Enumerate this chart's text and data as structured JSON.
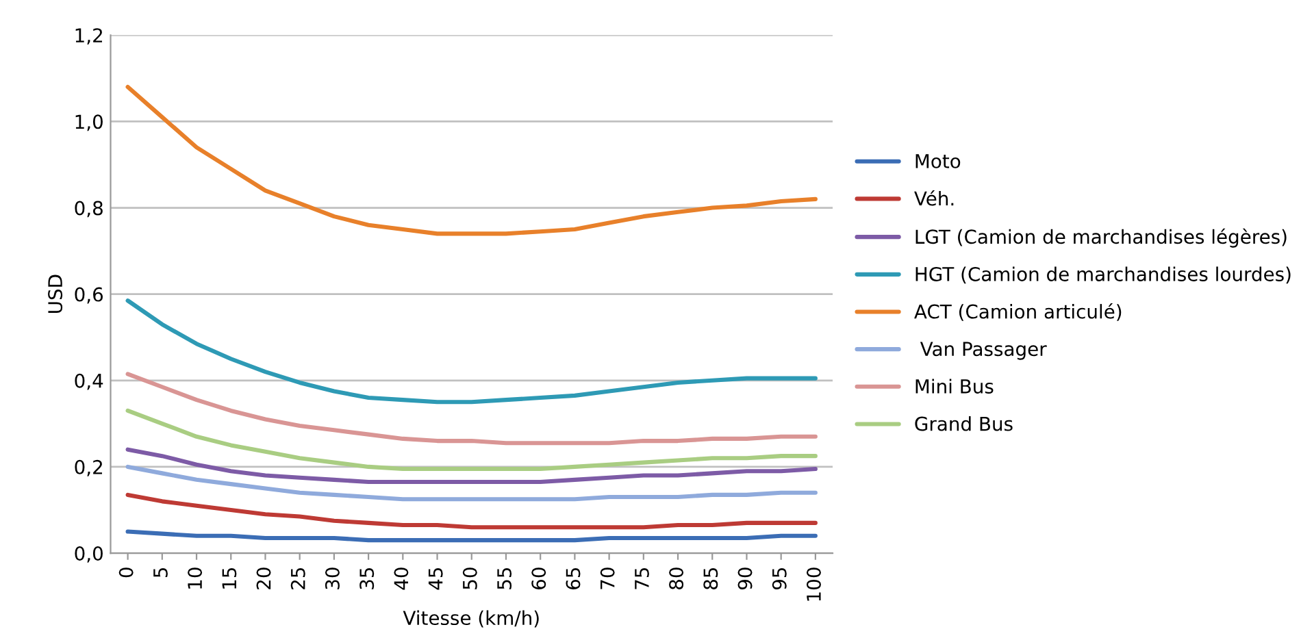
{
  "chart_data": {
    "type": "line",
    "xlabel": "Vitesse (km/h)",
    "ylabel": "USD",
    "categories": [
      "0",
      "5",
      "10",
      "15",
      "20",
      "25",
      "30",
      "35",
      "40",
      "45",
      "50",
      "55",
      "60",
      "65",
      "70",
      "75",
      "80",
      "85",
      "90",
      "95",
      "100"
    ],
    "ylim": [
      0,
      1.2
    ],
    "yticks": [
      {
        "value": 0,
        "label": "0,0"
      },
      {
        "value": 0.2,
        "label": "0,2"
      },
      {
        "value": 0.4,
        "label": "0,4"
      },
      {
        "value": 0.6,
        "label": "0,6"
      },
      {
        "value": 0.8,
        "label": "0,8"
      },
      {
        "value": 1.0,
        "label": "1,0"
      },
      {
        "value": 1.2,
        "label": "1,2"
      }
    ],
    "grid": "y",
    "legend": "right",
    "marker": "none",
    "line_style": "solid",
    "series": [
      {
        "name": "Moto",
        "color": "#3b6db5",
        "values": [
          0.05,
          0.045,
          0.04,
          0.04,
          0.035,
          0.035,
          0.035,
          0.03,
          0.03,
          0.03,
          0.03,
          0.03,
          0.03,
          0.03,
          0.035,
          0.035,
          0.035,
          0.035,
          0.035,
          0.04,
          0.04
        ]
      },
      {
        "name": "Véh.",
        "color": "#be3a34",
        "values": [
          0.135,
          0.12,
          0.11,
          0.1,
          0.09,
          0.085,
          0.075,
          0.07,
          0.065,
          0.065,
          0.06,
          0.06,
          0.06,
          0.06,
          0.06,
          0.06,
          0.065,
          0.065,
          0.07,
          0.07,
          0.07
        ]
      },
      {
        "name": "LGT (Camion de marchandises légères)",
        "color": "#7d5ba6",
        "values": [
          0.24,
          0.225,
          0.205,
          0.19,
          0.18,
          0.175,
          0.17,
          0.165,
          0.165,
          0.165,
          0.165,
          0.165,
          0.165,
          0.17,
          0.175,
          0.18,
          0.18,
          0.185,
          0.19,
          0.19,
          0.195
        ]
      },
      {
        "name": "HGT (Camion de marchandises lourdes)",
        "color": "#2e9ab5",
        "values": [
          0.585,
          0.53,
          0.485,
          0.45,
          0.42,
          0.395,
          0.375,
          0.36,
          0.355,
          0.35,
          0.35,
          0.355,
          0.36,
          0.365,
          0.375,
          0.385,
          0.395,
          0.4,
          0.405,
          0.405,
          0.405
        ]
      },
      {
        "name": "ACT (Camion articulé)",
        "color": "#e8802a",
        "values": [
          1.08,
          1.01,
          0.94,
          0.89,
          0.84,
          0.81,
          0.78,
          0.76,
          0.75,
          0.74,
          0.74,
          0.74,
          0.745,
          0.75,
          0.765,
          0.78,
          0.79,
          0.8,
          0.805,
          0.815,
          0.82
        ]
      },
      {
        "name": " Van Passager",
        "color": "#8faadc",
        "values": [
          0.2,
          0.185,
          0.17,
          0.16,
          0.15,
          0.14,
          0.135,
          0.13,
          0.125,
          0.125,
          0.125,
          0.125,
          0.125,
          0.125,
          0.13,
          0.13,
          0.13,
          0.135,
          0.135,
          0.14,
          0.14
        ]
      },
      {
        "name": "Mini Bus",
        "color": "#d99594",
        "values": [
          0.415,
          0.385,
          0.355,
          0.33,
          0.31,
          0.295,
          0.285,
          0.275,
          0.265,
          0.26,
          0.26,
          0.255,
          0.255,
          0.255,
          0.255,
          0.26,
          0.26,
          0.265,
          0.265,
          0.27,
          0.27
        ]
      },
      {
        "name": "Grand Bus",
        "color": "#a9cd82",
        "values": [
          0.33,
          0.3,
          0.27,
          0.25,
          0.235,
          0.22,
          0.21,
          0.2,
          0.195,
          0.195,
          0.195,
          0.195,
          0.195,
          0.2,
          0.205,
          0.21,
          0.215,
          0.22,
          0.22,
          0.225,
          0.225
        ]
      }
    ]
  }
}
